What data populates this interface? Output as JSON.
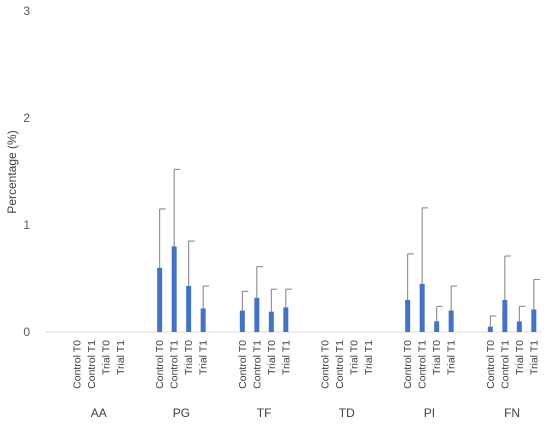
{
  "chart_data": {
    "type": "bar",
    "title": "",
    "xlabel": "",
    "ylabel": "Percentage (%)",
    "ylim": [
      0,
      3
    ],
    "yticks": [
      0,
      1,
      2,
      3
    ],
    "grid": false,
    "bar_color": "#4472C4",
    "groups": [
      "AA",
      "PG",
      "TF",
      "TD",
      "PI",
      "FN"
    ],
    "subcategories": [
      "Control T0",
      "Control T1",
      "Trial T0",
      "Trial T1"
    ],
    "values": [
      [
        0,
        0,
        0,
        0
      ],
      [
        0.6,
        0.8,
        0.43,
        0.22
      ],
      [
        0.2,
        0.32,
        0.19,
        0.23
      ],
      [
        0,
        0,
        0,
        0
      ],
      [
        0.3,
        0.45,
        0.1,
        0.2
      ],
      [
        0.05,
        0.3,
        0.1,
        0.21
      ]
    ],
    "error_upper": [
      [
        0,
        0,
        0,
        0
      ],
      [
        0.55,
        0.72,
        0.42,
        0.21
      ],
      [
        0.18,
        0.29,
        0.21,
        0.17
      ],
      [
        0,
        0,
        0,
        0
      ],
      [
        0.43,
        0.71,
        0.14,
        0.23
      ],
      [
        0.1,
        0.41,
        0.14,
        0.28
      ]
    ]
  }
}
